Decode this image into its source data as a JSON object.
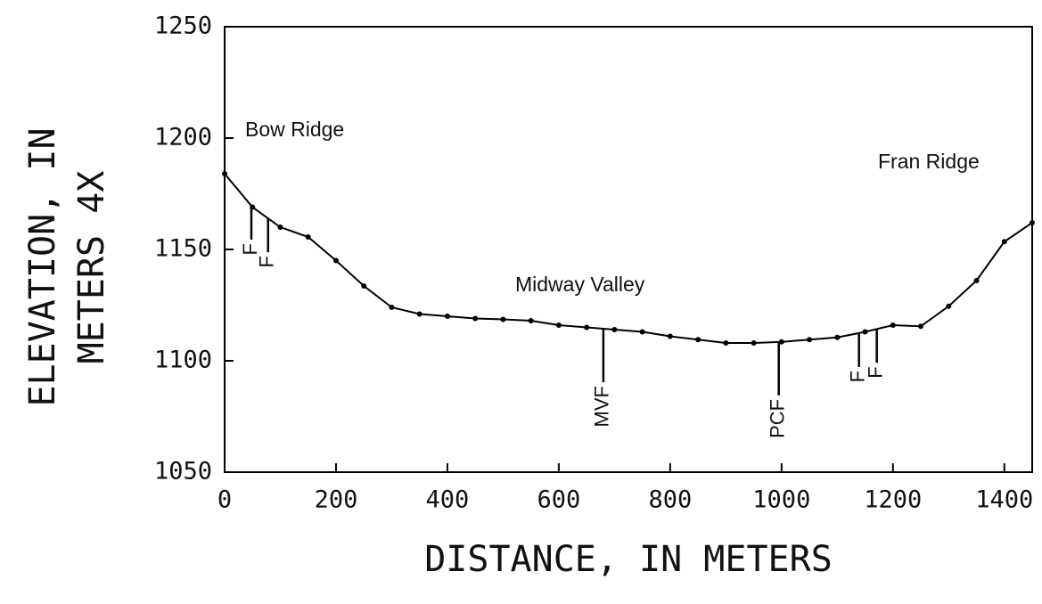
{
  "chart_data": {
    "type": "line",
    "x_label": "DISTANCE, IN METERS",
    "y_label": [
      "ELEVATION, IN",
      "METERS 4X"
    ],
    "x": [
      0,
      50,
      100,
      150,
      200,
      250,
      300,
      350,
      400,
      450,
      500,
      550,
      600,
      650,
      700,
      750,
      800,
      850,
      900,
      950,
      1000,
      1050,
      1100,
      1150,
      1200,
      1250,
      1300,
      1350,
      1400,
      1450
    ],
    "values": [
      1184,
      1169,
      1160,
      1155.6,
      1145,
      1133.6,
      1124,
      1121,
      1120,
      1119,
      1118.6,
      1118,
      1116,
      1115,
      1114,
      1113,
      1111,
      1109.5,
      1108,
      1108,
      1108.5,
      1109.5,
      1110.5,
      1113,
      1116,
      1115.5,
      1124.5,
      1136,
      1153.5,
      1162
    ],
    "color": "#000000",
    "xlim": [
      0,
      1450
    ],
    "xticks": [
      0,
      200,
      400,
      600,
      800,
      1000,
      1200,
      1400
    ],
    "ylim": [
      1050,
      1250
    ],
    "yticks": [
      1050,
      1100,
      1150,
      1200,
      1250
    ],
    "places": [
      "Bow Ridge",
      "Midway Valley",
      "Fran Ridge"
    ],
    "faults": [
      {
        "x": 48,
        "label": "F"
      },
      {
        "x": 78,
        "label": "F"
      },
      {
        "x": 680,
        "label": "MVF"
      },
      {
        "x": 995,
        "label": "PCF"
      },
      {
        "x": 1139,
        "label": "F"
      },
      {
        "x": 1171,
        "label": "F"
      }
    ]
  }
}
